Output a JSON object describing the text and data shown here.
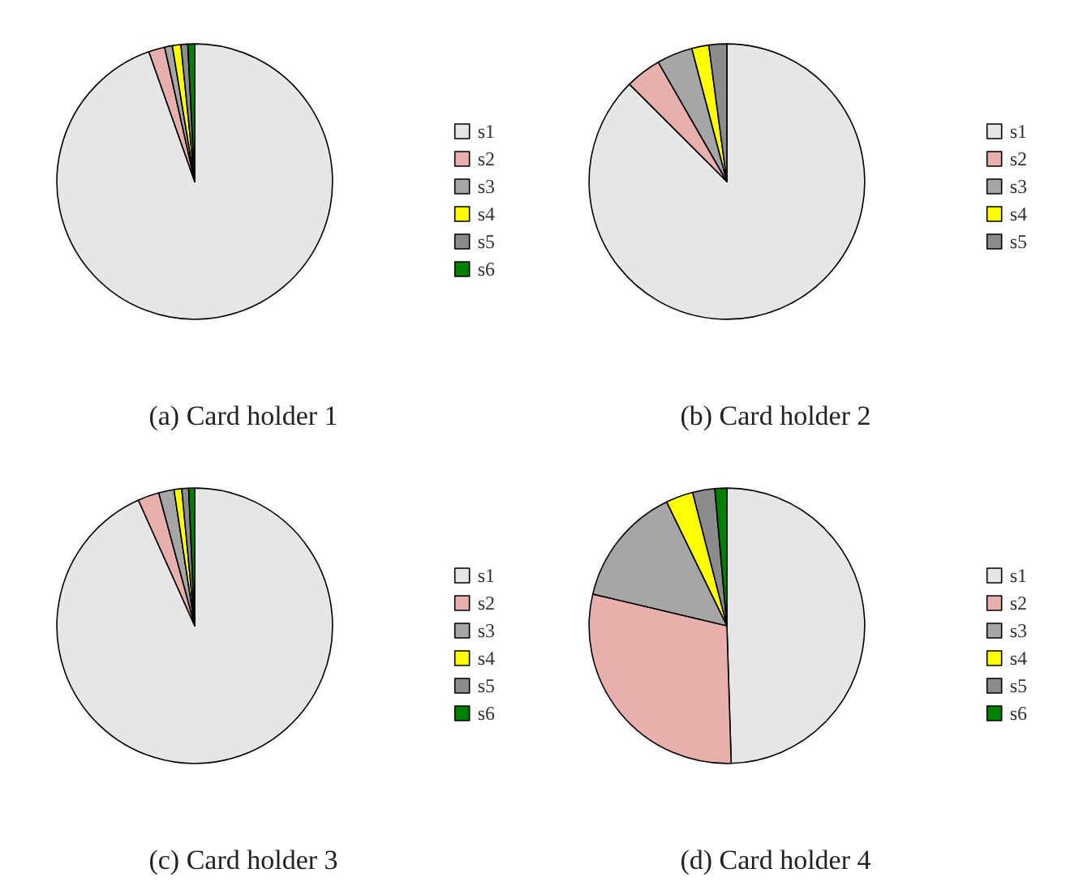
{
  "chart_data": [
    {
      "type": "pie",
      "title": "(a) Card holder 1",
      "categories": [
        "s1",
        "s2",
        "s3",
        "s4",
        "s5",
        "s6"
      ],
      "values": [
        94.6,
        1.9,
        0.9,
        1,
        0.8,
        0.8
      ],
      "colors": [
        "#e6e6e6",
        "#e8b0ac",
        "#a6a6a6",
        "#ffff00",
        "#8c8c8c",
        "#008000"
      ],
      "legend": "right"
    },
    {
      "type": "pie",
      "title": "(b) Card holder 2",
      "categories": [
        "s1",
        "s2",
        "s3",
        "s4",
        "s5"
      ],
      "values": [
        87.5,
        4.2,
        4.2,
        2,
        2.1
      ],
      "colors": [
        "#e6e6e6",
        "#e8b0ac",
        "#a6a6a6",
        "#ffff00",
        "#8c8c8c"
      ],
      "legend": "right"
    },
    {
      "type": "pie",
      "title": "(c) Card holder 3",
      "categories": [
        "s1",
        "s2",
        "s3",
        "s4",
        "s5",
        "s6"
      ],
      "values": [
        93.3,
        2.5,
        1.8,
        0.9,
        0.8,
        0.7
      ],
      "colors": [
        "#e6e6e6",
        "#e8b0ac",
        "#a6a6a6",
        "#ffff00",
        "#8c8c8c",
        "#008000"
      ],
      "legend": "right"
    },
    {
      "type": "pie",
      "title": "(d) Card holder 4",
      "categories": [
        "s1",
        "s2",
        "s3",
        "s4",
        "s5",
        "s6"
      ],
      "values": [
        49.5,
        29.2,
        14.1,
        3.2,
        2.6,
        1.4
      ],
      "colors": [
        "#e6e6e6",
        "#e8b0ac",
        "#a6a6a6",
        "#ffff00",
        "#8c8c8c",
        "#008000"
      ],
      "legend": "right"
    }
  ]
}
